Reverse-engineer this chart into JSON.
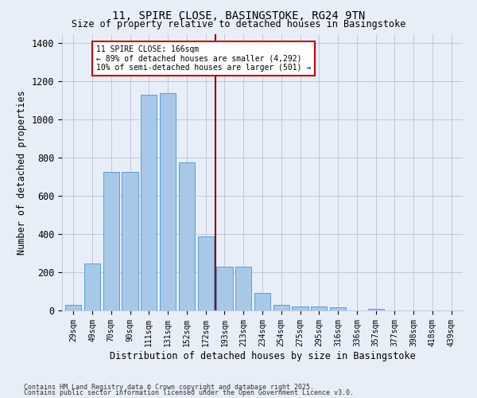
{
  "title1": "11, SPIRE CLOSE, BASINGSTOKE, RG24 9TN",
  "title2": "Size of property relative to detached houses in Basingstoke",
  "xlabel": "Distribution of detached houses by size in Basingstoke",
  "ylabel": "Number of detached properties",
  "categories": [
    "29sqm",
    "49sqm",
    "70sqm",
    "90sqm",
    "111sqm",
    "131sqm",
    "152sqm",
    "172sqm",
    "193sqm",
    "213sqm",
    "234sqm",
    "254sqm",
    "275sqm",
    "295sqm",
    "316sqm",
    "336sqm",
    "357sqm",
    "377sqm",
    "398sqm",
    "418sqm",
    "439sqm"
  ],
  "values": [
    30,
    248,
    725,
    725,
    1130,
    1140,
    775,
    390,
    230,
    230,
    90,
    30,
    22,
    22,
    18,
    0,
    8,
    0,
    0,
    0,
    0
  ],
  "bar_color": "#a8c8e8",
  "bar_edge_color": "#5a9fd4",
  "vline_x": 7.5,
  "vline_color": "#8b0000",
  "annotation_text": "11 SPIRE CLOSE: 166sqm\n← 89% of detached houses are smaller (4,292)\n10% of semi-detached houses are larger (501) →",
  "annotation_box_color": "#ffffff",
  "annotation_box_edge": "#cc0000",
  "footer1": "Contains HM Land Registry data © Crown copyright and database right 2025.",
  "footer2": "Contains public sector information licensed under the Open Government Licence v3.0.",
  "bg_color": "#e8eef8",
  "grid_color": "#b8c4d8",
  "ylim": [
    0,
    1450
  ],
  "yticks": [
    0,
    200,
    400,
    600,
    800,
    1000,
    1200,
    1400
  ]
}
